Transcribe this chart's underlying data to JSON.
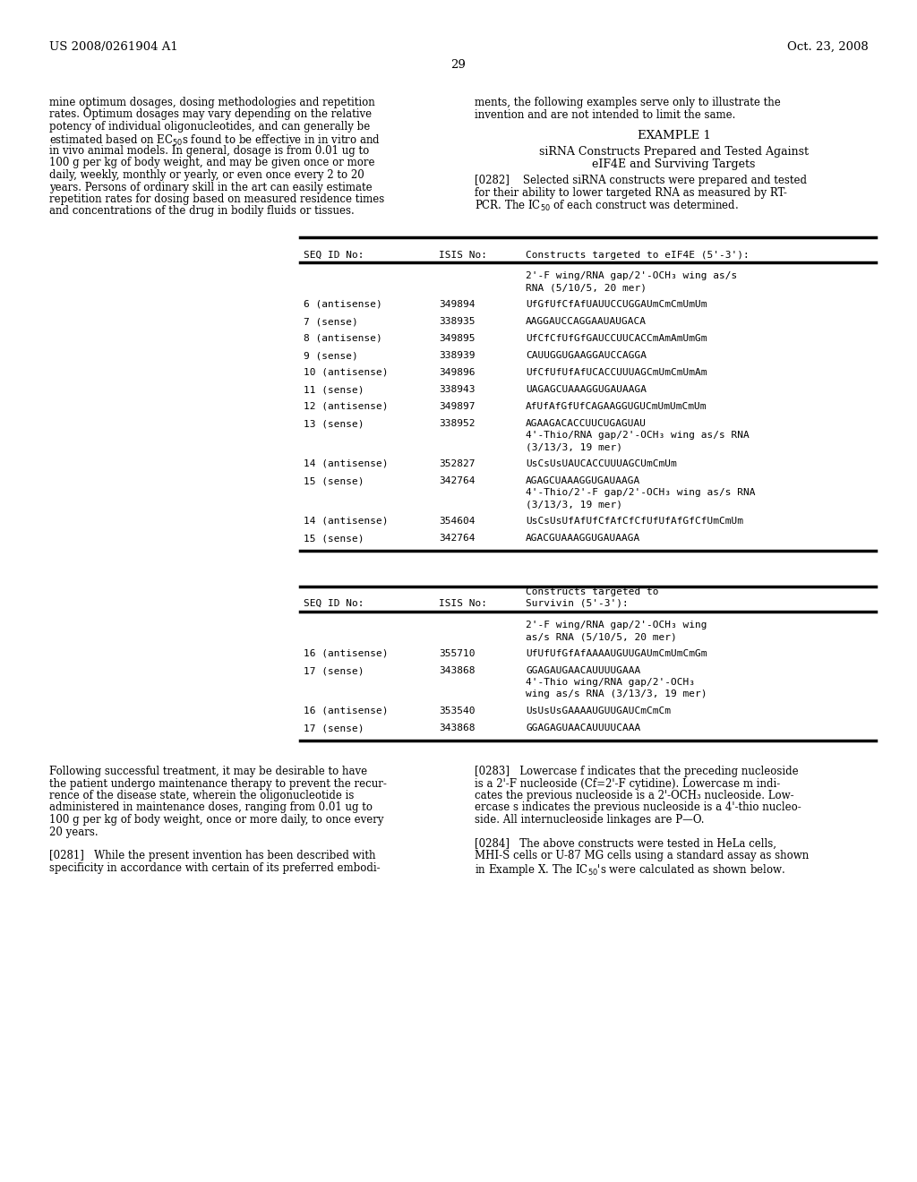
{
  "bg_color": "#ffffff",
  "header_left": "US 2008/0261904 A1",
  "header_right": "Oct. 23, 2008",
  "page_num": "29",
  "left_col_text": [
    "mine optimum dosages, dosing methodologies and repetition",
    "rates. Optimum dosages may vary depending on the relative",
    "potency of individual oligonucleotides, and can generally be",
    "estimated based on EC₅₀s found to be effective in in vitro and",
    "in vivo animal models. In general, dosage is from 0.01 ug to",
    "100 g per kg of body weight, and may be given once or more",
    "daily, weekly, monthly or yearly, or even once every 2 to 20",
    "years. Persons of ordinary skill in the art can easily estimate",
    "repetition rates for dosing based on measured residence times",
    "and concentrations of the drug in bodily fluids or tissues."
  ],
  "right_col_text_1": [
    "ments, the following examples serve only to illustrate the",
    "invention and are not intended to limit the same."
  ],
  "example_title": "EXAMPLE 1",
  "example_subtitle1": "siRNA Constructs Prepared and Tested Against",
  "example_subtitle2": "eIF4E and Surviving Targets",
  "para282_lines": [
    "[0282]    Selected siRNA constructs were prepared and tested",
    "for their ability to lower targeted RNA as measured by RT-",
    "PCR. The IC₅₀ of each construct was determined."
  ],
  "table1_header_col1": "SEQ ID No:",
  "table1_header_col2": "ISIS No:",
  "table1_header_col3": "Constructs targeted to eIF4E (5'-3'):",
  "table1_rows": [
    {
      "seq": "",
      "isis": "",
      "construct_lines": [
        "2'-F wing/RNA gap/2'-OCH₃ wing as/s",
        "RNA (5/10/5, 20 mer)"
      ]
    },
    {
      "seq": "6 (antisense)",
      "isis": "349894",
      "construct_lines": [
        "UfGfUfCfAfUAUUCCUGGAUmCmCmUmUm"
      ]
    },
    {
      "seq": "7 (sense)",
      "isis": "338935",
      "construct_lines": [
        "AAGGAUCCAGGAAUAUGACA"
      ]
    },
    {
      "seq": "8 (antisense)",
      "isis": "349895",
      "construct_lines": [
        "UfCfCfUfGfGAUCCUUCACCmAmAmUmGm"
      ]
    },
    {
      "seq": "9 (sense)",
      "isis": "338939",
      "construct_lines": [
        "CAUUGGUGAAGGAUCCAGGA"
      ]
    },
    {
      "seq": "10 (antisense)",
      "isis": "349896",
      "construct_lines": [
        "UfCfUfUfAfUCACCUUUAGCmUmCmUmAm"
      ]
    },
    {
      "seq": "11 (sense)",
      "isis": "338943",
      "construct_lines": [
        "UAGAGCUAAAGGUGAUAAGA"
      ]
    },
    {
      "seq": "12 (antisense)",
      "isis": "349897",
      "construct_lines": [
        "AfUfAfGfUfCAGAAGGUGUCmUmUmCmUm"
      ]
    },
    {
      "seq": "13 (sense)",
      "isis": "338952",
      "construct_lines": [
        "AGAAGACACCUUCUGAGUAU",
        "4'-Thio/RNA gap/2'-OCH₃ wing as/s RNA",
        "(3/13/3, 19 mer)"
      ]
    },
    {
      "seq": "14 (antisense)",
      "isis": "352827",
      "construct_lines": [
        "UsCsUsUAUCACCUUUAGCUmCmUm"
      ]
    },
    {
      "seq": "15 (sense)",
      "isis": "342764",
      "construct_lines": [
        "AGAGCUAAAGGUGAUAAGA",
        "4'-Thio/2'-F gap/2'-OCH₃ wing as/s RNA",
        "(3/13/3, 19 mer)"
      ]
    },
    {
      "seq": "14 (antisense)",
      "isis": "354604",
      "construct_lines": [
        "UsCsUsUfAfUfCfAfCfCfUfUfAfGfCfUmCmUm"
      ]
    },
    {
      "seq": "15 (sense)",
      "isis": "342764",
      "construct_lines": [
        "AGACGUAAAGGUGAUAAGA"
      ]
    }
  ],
  "table2_header_col3a": "Constructs targeted to",
  "table2_header_col3b": "Survivin (5'-3'):",
  "table2_rows": [
    {
      "seq": "",
      "isis": "",
      "construct_lines": [
        "2'-F wing/RNA gap/2'-OCH₃ wing",
        "as/s RNA (5/10/5, 20 mer)"
      ]
    },
    {
      "seq": "16 (antisense)",
      "isis": "355710",
      "construct_lines": [
        "UfUfUfGfAfAAAAUGUUGAUmCmUmCmGm"
      ]
    },
    {
      "seq": "17 (sense)",
      "isis": "343868",
      "construct_lines": [
        "GGAGAUGAACAUUUUGAAA",
        "4'-Thio wing/RNA gap/2'-OCH₃",
        "wing as/s RNA (3/13/3, 19 mer)"
      ]
    },
    {
      "seq": "16 (antisense)",
      "isis": "353540",
      "construct_lines": [
        "UsUsUsGAAAAUGUUGAUCmCmCm"
      ]
    },
    {
      "seq": "17 (sense)",
      "isis": "343868",
      "construct_lines": [
        "GGAGAGUAACAUUUUCAAA"
      ]
    }
  ],
  "bottom_left_text": [
    "Following successful treatment, it may be desirable to have",
    "the patient undergo maintenance therapy to prevent the recur-",
    "rence of the disease state, wherein the oligonucleotide is",
    "administered in maintenance doses, ranging from 0.01 ug to",
    "100 g per kg of body weight, once or more daily, to once every",
    "20 years.",
    "",
    "[0281]   While the present invention has been described with",
    "specificity in accordance with certain of its preferred embodi-"
  ],
  "bottom_right_text": [
    "[0283]   Lowercase f indicates that the preceding nucleoside",
    "is a 2'-F nucleoside (Cf=2'-F cytidine). Lowercase m indi-",
    "cates the previous nucleoside is a 2'-OCH₃ nucleoside. Low-",
    "ercase s indicates the previous nucleoside is a 4'-thio nucleo-",
    "side. All internucleoside linkages are P—O.",
    "",
    "[0284]   The above constructs were tested in HeLa cells,",
    "MHI-S cells or U-87 MG cells using a standard assay as shown",
    "in Example X. The IC₅₀'s were calculated as shown below."
  ]
}
